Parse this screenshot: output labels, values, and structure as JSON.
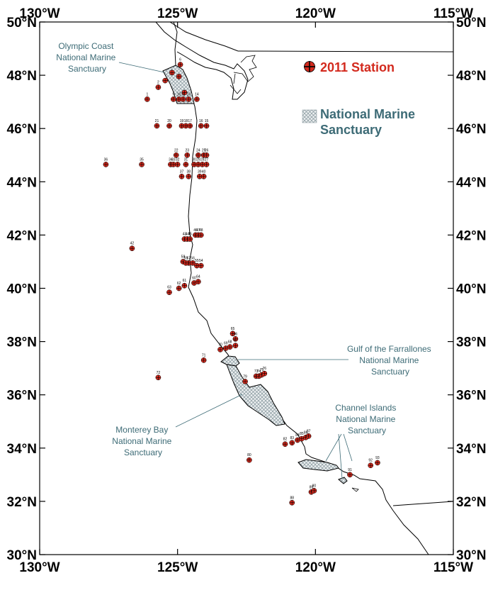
{
  "map": {
    "lon_range": [
      -130,
      -115
    ],
    "lat_range": [
      30,
      50
    ],
    "x_ticks": [
      {
        "value": -130,
        "label": "130°W"
      },
      {
        "value": -125,
        "label": "125°W"
      },
      {
        "value": -120,
        "label": "120°W"
      },
      {
        "value": -115,
        "label": "115°W"
      }
    ],
    "y_ticks": [
      {
        "value": 50,
        "label": "50°N"
      },
      {
        "value": 48,
        "label": "48°N"
      },
      {
        "value": 46,
        "label": "46°N"
      },
      {
        "value": 44,
        "label": "44°N"
      },
      {
        "value": 42,
        "label": "42°N"
      },
      {
        "value": 40,
        "label": "40°N"
      },
      {
        "value": 38,
        "label": "38°N"
      },
      {
        "value": 36,
        "label": "36°N"
      },
      {
        "value": 34,
        "label": "34°N"
      },
      {
        "value": 32,
        "label": "32°N"
      },
      {
        "value": 30,
        "label": "30°N"
      }
    ]
  },
  "legend": {
    "station_label": "2011 Station",
    "sanctuary_label_1": "National Marine",
    "sanctuary_label_2": "Sanctuary",
    "station_color": "#d32a1e",
    "sanctuary_text_color": "#3d6b76"
  },
  "sanctuaries": {
    "olympic": [
      "Olympic Coast",
      "National Marine",
      "Sanctuary"
    ],
    "farallones": [
      "Gulf of the Farrallones",
      "National Marine",
      "Sanctuary"
    ],
    "monterey": [
      "Monterey Bay",
      "National Marine",
      "Sanctuary"
    ],
    "channel": [
      "Channel Islands",
      "National Marine",
      "Sanctuary"
    ]
  },
  "stations": [
    {
      "id": "6",
      "lon": -124.9,
      "lat": 48.4
    },
    {
      "id": "",
      "lon": -125.2,
      "lat": 48.1
    },
    {
      "id": "",
      "lon": -125.45,
      "lat": 47.8
    },
    {
      "id": "2",
      "lon": -125.7,
      "lat": 47.55
    },
    {
      "id": "",
      "lon": -124.95,
      "lat": 47.95
    },
    {
      "id": "",
      "lon": -124.75,
      "lat": 47.35
    },
    {
      "id": "1",
      "lon": -126.1,
      "lat": 47.1
    },
    {
      "id": "9",
      "lon": -125.15,
      "lat": 47.1
    },
    {
      "id": "10",
      "lon": -124.95,
      "lat": 47.1
    },
    {
      "id": "11",
      "lon": -124.8,
      "lat": 47.1
    },
    {
      "id": "13",
      "lon": -124.6,
      "lat": 47.1
    },
    {
      "id": "14",
      "lon": -124.3,
      "lat": 47.1
    },
    {
      "id": "21",
      "lon": -125.75,
      "lat": 46.1
    },
    {
      "id": "20",
      "lon": -125.3,
      "lat": 46.1
    },
    {
      "id": "19",
      "lon": -124.85,
      "lat": 46.1
    },
    {
      "id": "18",
      "lon": -124.7,
      "lat": 46.1
    },
    {
      "id": "17",
      "lon": -124.55,
      "lat": 46.1
    },
    {
      "id": "16",
      "lon": -124.15,
      "lat": 46.1
    },
    {
      "id": "15",
      "lon": -123.95,
      "lat": 46.1
    },
    {
      "id": "22",
      "lon": -125.05,
      "lat": 45.0
    },
    {
      "id": "23",
      "lon": -124.65,
      "lat": 45.0
    },
    {
      "id": "24",
      "lon": -124.25,
      "lat": 45.0
    },
    {
      "id": "25",
      "lon": -124.05,
      "lat": 45.0
    },
    {
      "id": "26",
      "lon": -123.95,
      "lat": 45.0
    },
    {
      "id": "36",
      "lon": -127.6,
      "lat": 44.65
    },
    {
      "id": "35",
      "lon": -126.3,
      "lat": 44.65
    },
    {
      "id": "34",
      "lon": -125.25,
      "lat": 44.65
    },
    {
      "id": "33",
      "lon": -125.15,
      "lat": 44.65
    },
    {
      "id": "32",
      "lon": -125.0,
      "lat": 44.65
    },
    {
      "id": "31",
      "lon": -124.7,
      "lat": 44.65
    },
    {
      "id": "30",
      "lon": -124.4,
      "lat": 44.65
    },
    {
      "id": "29",
      "lon": -124.25,
      "lat": 44.65
    },
    {
      "id": "28",
      "lon": -124.1,
      "lat": 44.65
    },
    {
      "id": "27",
      "lon": -123.95,
      "lat": 44.65
    },
    {
      "id": "37",
      "lon": -124.85,
      "lat": 44.2
    },
    {
      "id": "38",
      "lon": -124.6,
      "lat": 44.2
    },
    {
      "id": "39",
      "lon": -124.2,
      "lat": 44.2
    },
    {
      "id": "40",
      "lon": -124.05,
      "lat": 44.2
    },
    {
      "id": "43",
      "lon": -124.75,
      "lat": 41.85
    },
    {
      "id": "44",
      "lon": -124.65,
      "lat": 41.85
    },
    {
      "id": "45",
      "lon": -124.55,
      "lat": 41.85
    },
    {
      "id": "46",
      "lon": -124.35,
      "lat": 42.0
    },
    {
      "id": "47",
      "lon": -124.25,
      "lat": 42.0
    },
    {
      "id": "48",
      "lon": -124.15,
      "lat": 42.0
    },
    {
      "id": "42",
      "lon": -126.65,
      "lat": 41.5
    },
    {
      "id": "58",
      "lon": -124.8,
      "lat": 41.0
    },
    {
      "id": "57",
      "lon": -124.6,
      "lat": 40.95
    },
    {
      "id": "56",
      "lon": -124.45,
      "lat": 40.95
    },
    {
      "id": "55",
      "lon": -124.3,
      "lat": 40.85
    },
    {
      "id": "54",
      "lon": -124.15,
      "lat": 40.85
    },
    {
      "id": "59",
      "lon": -124.7,
      "lat": 40.95
    },
    {
      "id": "63",
      "lon": -125.3,
      "lat": 39.85
    },
    {
      "id": "62",
      "lon": -124.95,
      "lat": 40.0
    },
    {
      "id": "61",
      "lon": -124.75,
      "lat": 40.1
    },
    {
      "id": "60",
      "lon": -124.4,
      "lat": 40.2
    },
    {
      "id": "64",
      "lon": -124.25,
      "lat": 40.25
    },
    {
      "id": "65",
      "lon": -123.0,
      "lat": 38.3
    },
    {
      "id": "66",
      "lon": -122.9,
      "lat": 38.1
    },
    {
      "id": "70",
      "lon": -123.45,
      "lat": 37.7
    },
    {
      "id": "69",
      "lon": -123.25,
      "lat": 37.75
    },
    {
      "id": "68",
      "lon": -123.1,
      "lat": 37.8
    },
    {
      "id": "67",
      "lon": -122.9,
      "lat": 37.85
    },
    {
      "id": "71",
      "lon": -124.05,
      "lat": 37.3
    },
    {
      "id": "72",
      "lon": -125.7,
      "lat": 36.65
    },
    {
      "id": "79",
      "lon": -122.55,
      "lat": 36.5
    },
    {
      "id": "73",
      "lon": -122.15,
      "lat": 36.7
    },
    {
      "id": "74",
      "lon": -122.05,
      "lat": 36.7
    },
    {
      "id": "75",
      "lon": -121.95,
      "lat": 36.75
    },
    {
      "id": "76",
      "lon": -121.85,
      "lat": 36.8
    },
    {
      "id": "82",
      "lon": -121.1,
      "lat": 34.15
    },
    {
      "id": "83",
      "lon": -120.85,
      "lat": 34.2
    },
    {
      "id": "84",
      "lon": -120.65,
      "lat": 34.3
    },
    {
      "id": "85",
      "lon": -120.5,
      "lat": 34.35
    },
    {
      "id": "86",
      "lon": -120.35,
      "lat": 34.4
    },
    {
      "id": "87",
      "lon": -120.25,
      "lat": 34.45
    },
    {
      "id": "80",
      "lon": -122.4,
      "lat": 33.55
    },
    {
      "id": "91",
      "lon": -118.75,
      "lat": 33.0
    },
    {
      "id": "92",
      "lon": -118.0,
      "lat": 33.35
    },
    {
      "id": "93",
      "lon": -117.75,
      "lat": 33.45
    },
    {
      "id": "88",
      "lon": -120.85,
      "lat": 31.95
    },
    {
      "id": "89",
      "lon": -120.15,
      "lat": 32.35
    },
    {
      "id": "90",
      "lon": -120.05,
      "lat": 32.4
    }
  ]
}
